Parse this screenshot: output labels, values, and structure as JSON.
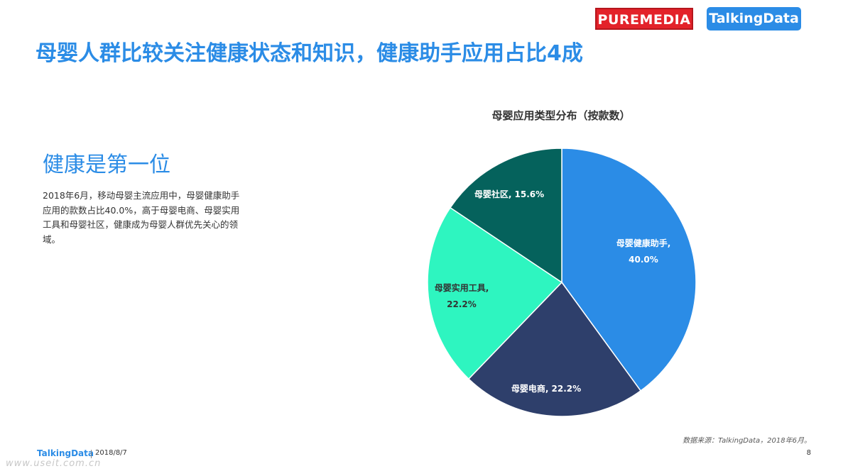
{
  "header": {
    "logo_puremedia": "PUREMEDIA",
    "logo_talkingdata": "TalkingData",
    "title": "母婴人群比较关注健康状态和知识，健康助手应用占比4成"
  },
  "left": {
    "heading": "健康是第一位",
    "paragraph": "2018年6月，移动母婴主流应用中，母婴健康助手应用的款数占比40.0%，高于母婴电商、母婴实用工具和母婴社区，健康成为母婴人群优先关心的领域。"
  },
  "chart_data": {
    "type": "pie",
    "title": "母婴应用类型分布（按款数）",
    "categories": [
      "母婴健康助手",
      "母婴电商",
      "母婴实用工具",
      "母婴社区"
    ],
    "values": [
      40.0,
      22.2,
      22.2,
      15.6
    ],
    "unit": "%",
    "data_labels": [
      "母婴健康助手, 40.0%",
      "母婴电商, 22.2%",
      "母婴实用工具, 22.2%",
      "母婴社区, 15.6%"
    ],
    "colors": [
      "#2b8ce6",
      "#2e3f6b",
      "#2ef5c0",
      "#05625c"
    ],
    "start": "top, clockwise"
  },
  "footer": {
    "source": "数据来源：TalkingData，2018年6月。",
    "brand": "TalkingData",
    "date": "2018/8/7",
    "page": "8",
    "watermark": "www.useit.com.cn"
  }
}
